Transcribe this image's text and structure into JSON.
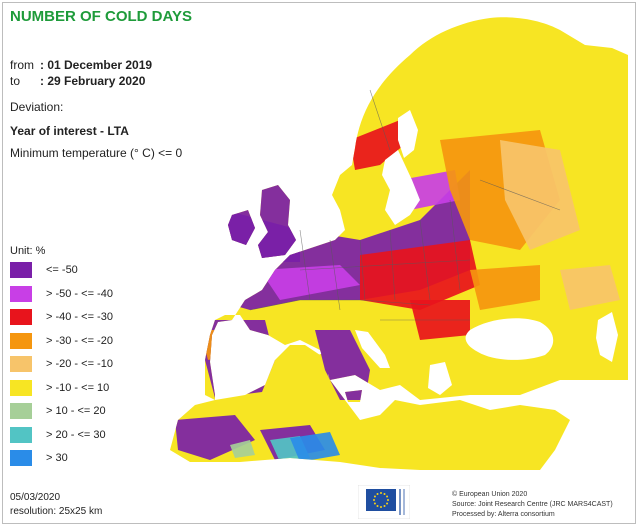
{
  "title": "NUMBER OF COLD DAYS",
  "period": {
    "from_label": "from",
    "from_value": ": 01 December 2019",
    "to_label": "to",
    "to_value": ": 29 February 2020"
  },
  "deviation_label": "Deviation:",
  "year_of_interest": "Year of interest - LTA",
  "minimum_temperature": "Minimum temperature (° C) <= 0",
  "legend": {
    "unit": "Unit:  %",
    "items": [
      {
        "label": "<= -50",
        "color": "#7a1fa8"
      },
      {
        "label": "> -50 - <= -40",
        "color": "#c83fe6"
      },
      {
        "label": "> -40 - <= -30",
        "color": "#e8141c"
      },
      {
        "label": "> -30 - <= -20",
        "color": "#f5960f"
      },
      {
        "label": "> -20 - <= -10",
        "color": "#f7c46a"
      },
      {
        "label": "> -10 - <= 10",
        "color": "#f7e523"
      },
      {
        "label": "> 10 - <= 20",
        "color": "#a6cf98"
      },
      {
        "label": "> 20 - <= 30",
        "color": "#52c4c4"
      },
      {
        "label": "> 30",
        "color": "#2a8ce8"
      }
    ]
  },
  "footer": {
    "date": "05/03/2020",
    "resolution": "resolution:  25x25 km",
    "logo": "eu-flag-logo",
    "credits": [
      "© European Union 2020",
      "Source: Joint Research Centre (JRC MARS4CAST)",
      "Processed by: Alterra consortium"
    ]
  },
  "colors": {
    "title": "#1e9b3a",
    "sea": "#ffffff",
    "no_data": "#c8c8c8",
    "border": "#5a5a5a"
  }
}
